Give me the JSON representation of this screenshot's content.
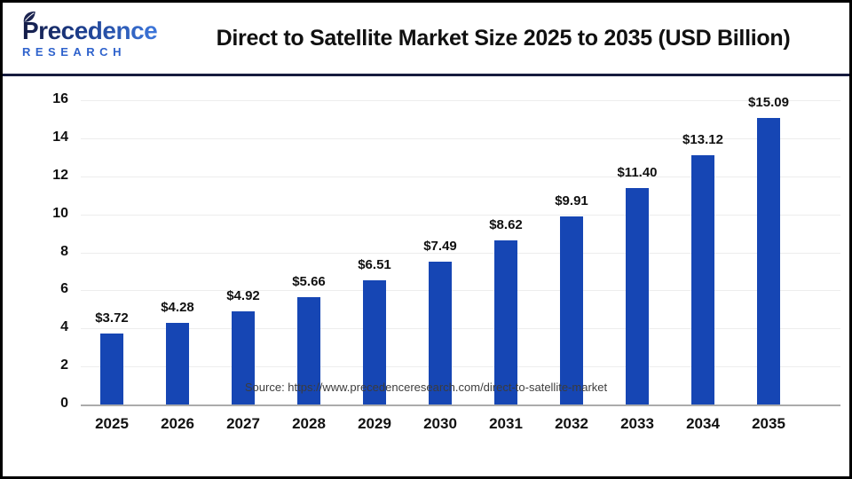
{
  "header": {
    "logo": {
      "name": "Precedence",
      "subtitle": "RESEARCH"
    },
    "title": "Direct to Satellite Market Size 2025 to 2035 (USD Billion)"
  },
  "chart_data": {
    "type": "bar",
    "title": "Direct to Satellite Market Size 2025 to 2035 (USD Billion)",
    "categories": [
      "2025",
      "2026",
      "2027",
      "2028",
      "2029",
      "2030",
      "2031",
      "2032",
      "2033",
      "2034",
      "2035"
    ],
    "values": [
      3.72,
      4.28,
      4.92,
      5.66,
      6.51,
      7.49,
      8.62,
      9.91,
      11.4,
      13.12,
      15.09
    ],
    "value_labels": [
      "$3.72",
      "$4.28",
      "$4.92",
      "$5.66",
      "$6.51",
      "$7.49",
      "$8.62",
      "$9.91",
      "$11.40",
      "$13.12",
      "$15.09"
    ],
    "xlabel": "",
    "ylabel": "",
    "yticks": [
      0,
      2,
      4,
      6,
      8,
      10,
      12,
      14,
      16
    ],
    "ylim": [
      0,
      16
    ],
    "grid": "horizontal",
    "legend": "none",
    "bar_color": "#1646b4"
  },
  "footer": {
    "source": "Source: https://www.precedenceresearch.com/direct-to-satellite-market"
  },
  "colors": {
    "bar": "#1646b4",
    "header_rule": "#161c3f",
    "grid_line": "#ededed",
    "axis_line": "#ababab",
    "logo_navy": "#141b45",
    "logo_blue": "#3d77dc",
    "research_blue": "#2e62cc",
    "title_text": "#111111",
    "source_text": "#3c3c3c"
  }
}
